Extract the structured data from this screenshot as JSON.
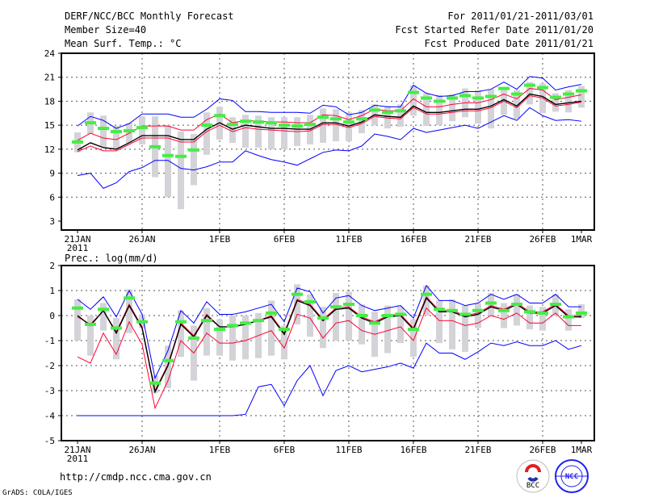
{
  "header": {
    "title": "DERF/NCC/BCC Monthly Forecast",
    "member_size": "Member Size=40",
    "variable1": "Mean Surf. Temp.: °C",
    "period": "For 2011/01/21-2011/03/01",
    "started": "Fcst Started Refer Date 2011/01/20",
    "produced": "Fcst Produced Date 2011/01/21"
  },
  "footer": {
    "url": "http://cmdp.ncc.cma.gov.cn",
    "grads": "GrADS: COLA/IGES",
    "logo_bcc": "BCC",
    "logo_ncc": "NCC"
  },
  "colors": {
    "mean": "#000000",
    "spread": "#ff0033",
    "extreme": "#0000ff",
    "marker": "#44ee44",
    "box": "#d3d3d8"
  },
  "chart_data": [
    {
      "type": "line",
      "title": "Mean Surf. Temp.: °C",
      "ylim": [
        3,
        24
      ],
      "yticks": [
        3,
        6,
        9,
        12,
        15,
        18,
        21,
        24
      ],
      "xtick_labels": [
        "21JAN",
        "26JAN",
        "1FEB",
        "6FEB",
        "11FEB",
        "16FEB",
        "21FEB",
        "26FEB",
        "1MAR"
      ],
      "xtick_days": [
        0,
        5,
        11,
        16,
        21,
        26,
        31,
        36,
        39
      ],
      "year_label": "2011",
      "grid": true,
      "x_days": 40,
      "series": [
        {
          "name": "max",
          "color": "extreme",
          "values": [
            14.9,
            16.1,
            15.6,
            14.6,
            15.2,
            16.4,
            16.4,
            16.4,
            16.0,
            16.0,
            17.0,
            18.3,
            18.1,
            16.7,
            16.7,
            16.6,
            16.6,
            16.6,
            16.5,
            17.5,
            17.3,
            16.3,
            16.6,
            17.5,
            17.3,
            17.3,
            20.0,
            19.0,
            18.6,
            18.7,
            19.2,
            19.2,
            19.5,
            20.4,
            19.5,
            21.1,
            20.9,
            19.4,
            19.8,
            20.1
          ]
        },
        {
          "name": "upper",
          "color": "spread",
          "values": [
            13.1,
            14.0,
            13.4,
            13.2,
            14.0,
            14.9,
            14.9,
            14.9,
            14.4,
            14.4,
            15.7,
            16.4,
            15.3,
            15.6,
            15.5,
            15.4,
            15.4,
            15.3,
            15.3,
            16.3,
            16.2,
            15.7,
            16.2,
            17.0,
            16.8,
            16.8,
            18.3,
            17.3,
            17.3,
            17.6,
            17.8,
            17.8,
            18.2,
            18.9,
            18.3,
            19.6,
            19.4,
            18.2,
            18.5,
            18.8
          ]
        },
        {
          "name": "mean",
          "color": "mean",
          "values": [
            11.9,
            12.8,
            12.2,
            12.0,
            12.8,
            13.7,
            13.7,
            13.7,
            13.2,
            13.2,
            14.5,
            15.3,
            14.5,
            15.0,
            14.8,
            14.6,
            14.6,
            14.5,
            14.5,
            15.3,
            15.3,
            14.9,
            15.4,
            16.3,
            16.1,
            16.0,
            17.4,
            16.6,
            16.6,
            16.8,
            17.0,
            17.0,
            17.4,
            18.2,
            17.4,
            18.9,
            18.6,
            17.6,
            17.8,
            18.0
          ]
        },
        {
          "name": "lower",
          "color": "spread",
          "values": [
            11.7,
            12.4,
            11.8,
            11.8,
            12.6,
            13.4,
            13.4,
            13.4,
            12.9,
            12.9,
            14.2,
            15.0,
            14.2,
            14.7,
            14.5,
            14.4,
            14.3,
            14.2,
            14.3,
            15.1,
            15.1,
            14.7,
            15.2,
            16.1,
            15.9,
            15.8,
            17.2,
            16.4,
            16.4,
            16.6,
            16.8,
            16.8,
            17.2,
            18.0,
            17.2,
            18.7,
            18.4,
            17.4,
            17.6,
            17.9
          ]
        },
        {
          "name": "min",
          "color": "extreme",
          "values": [
            8.7,
            9.0,
            7.1,
            7.8,
            9.2,
            9.7,
            10.6,
            10.6,
            9.6,
            9.4,
            9.8,
            10.4,
            10.4,
            11.8,
            11.2,
            10.7,
            10.4,
            10.0,
            10.8,
            11.6,
            11.9,
            11.8,
            12.4,
            13.9,
            13.6,
            13.2,
            14.6,
            14.1,
            14.4,
            14.7,
            15.0,
            14.6,
            15.4,
            16.2,
            15.6,
            17.2,
            16.2,
            15.6,
            15.7,
            15.5
          ]
        }
      ],
      "markers": [
        12.9,
        15.3,
        14.6,
        14.2,
        14.3,
        14.7,
        12.3,
        11.2,
        11.1,
        11.9,
        15.0,
        16.2,
        15.1,
        15.5,
        15.4,
        15.3,
        15.0,
        14.9,
        15.1,
        16.0,
        15.8,
        15.4,
        15.8,
        16.9,
        16.6,
        16.8,
        19.1,
        18.4,
        18.0,
        18.4,
        18.7,
        18.4,
        18.6,
        19.6,
        18.9,
        20.0,
        19.7,
        18.5,
        18.9,
        19.3
      ],
      "box_lo": [
        11.6,
        13.9,
        12.3,
        12.1,
        12.8,
        12.6,
        8.5,
        6.0,
        4.5,
        7.5,
        11.3,
        13.2,
        12.8,
        12.2,
        12.2,
        12.0,
        12.0,
        12.4,
        12.6,
        12.8,
        13.0,
        13.0,
        14.0,
        15.0,
        14.6,
        14.8,
        16.2,
        14.9,
        15.0,
        15.5,
        16.0,
        15.2,
        14.6,
        16.3,
        15.8,
        17.6,
        16.5,
        16.7,
        16.6,
        17.2
      ],
      "box_hi": [
        14.1,
        16.6,
        16.2,
        14.9,
        15.3,
        16.1,
        16.1,
        15.0,
        14.2,
        13.9,
        16.6,
        17.3,
        16.0,
        16.3,
        16.2,
        16.0,
        16.0,
        16.0,
        16.3,
        17.1,
        17.0,
        16.6,
        16.9,
        17.6,
        17.4,
        17.6,
        20.0,
        19.0,
        18.8,
        18.9,
        19.6,
        19.4,
        19.5,
        19.7,
        19.4,
        20.4,
        20.2,
        19.0,
        19.4,
        19.9
      ]
    },
    {
      "type": "line",
      "title": "Prec.: log(mm/d)",
      "ylim": [
        -5,
        2
      ],
      "yticks": [
        -5,
        -4,
        -3,
        -2,
        -1,
        0,
        1,
        2
      ],
      "xtick_labels": [
        "21JAN",
        "26JAN",
        "1FEB",
        "6FEB",
        "11FEB",
        "16FEB",
        "21FEB",
        "26FEB",
        "1MAR"
      ],
      "xtick_days": [
        0,
        5,
        11,
        16,
        21,
        26,
        31,
        36,
        39
      ],
      "year_label": "2011",
      "grid": true,
      "x_days": 40,
      "series": [
        {
          "name": "max",
          "color": "extreme",
          "values": [
            0.65,
            0.25,
            0.75,
            -0.05,
            1.0,
            0.05,
            -2.5,
            -1.4,
            0.2,
            -0.3,
            0.55,
            0.05,
            0.05,
            0.15,
            0.3,
            0.45,
            -0.25,
            1.1,
            0.95,
            0.1,
            0.7,
            0.8,
            0.4,
            0.2,
            0.3,
            0.4,
            -0.1,
            1.2,
            0.6,
            0.6,
            0.4,
            0.5,
            0.85,
            0.65,
            0.85,
            0.5,
            0.5,
            0.85,
            0.35,
            0.35
          ]
        },
        {
          "name": "upper",
          "color": "spread",
          "values": [
            -0.05,
            -0.35,
            0.2,
            -0.65,
            0.45,
            -0.45,
            -3.0,
            -1.95,
            -0.3,
            -0.8,
            0.05,
            -0.45,
            -0.45,
            -0.35,
            -0.2,
            0.0,
            -0.7,
            0.65,
            0.45,
            -0.15,
            0.3,
            0.35,
            -0.05,
            -0.25,
            0.0,
            0.05,
            -0.5,
            0.75,
            0.2,
            0.2,
            0.0,
            0.1,
            0.4,
            0.25,
            0.5,
            0.15,
            0.15,
            0.45,
            0.0,
            0.0
          ]
        },
        {
          "name": "mean",
          "color": "mean",
          "values": [
            0.0,
            -0.4,
            0.2,
            -0.7,
            0.4,
            -0.5,
            -3.05,
            -2.0,
            -0.35,
            -0.85,
            0.0,
            -0.45,
            -0.45,
            -0.35,
            -0.2,
            -0.05,
            -0.75,
            0.6,
            0.4,
            -0.2,
            0.25,
            0.3,
            -0.1,
            -0.3,
            -0.05,
            0.0,
            -0.55,
            0.7,
            0.15,
            0.15,
            -0.05,
            0.05,
            0.35,
            0.2,
            0.45,
            0.1,
            0.1,
            0.4,
            -0.05,
            -0.05
          ]
        },
        {
          "name": "lower",
          "color": "spread",
          "values": [
            -1.65,
            -1.9,
            -0.7,
            -1.55,
            -0.25,
            -1.15,
            -3.7,
            -2.6,
            -1.0,
            -1.5,
            -0.7,
            -1.1,
            -1.1,
            -1.0,
            -0.8,
            -0.6,
            -1.3,
            0.05,
            -0.1,
            -0.9,
            -0.3,
            -0.2,
            -0.6,
            -0.75,
            -0.6,
            -0.45,
            -1.0,
            0.3,
            -0.2,
            -0.2,
            -0.4,
            -0.3,
            0.0,
            -0.15,
            0.1,
            -0.3,
            -0.3,
            0.1,
            -0.4,
            -0.4
          ]
        },
        {
          "name": "min",
          "color": "extreme",
          "values": [
            -4,
            -4,
            -4,
            -4,
            -4,
            -4,
            -4,
            -4,
            -4,
            -4,
            -4,
            -4,
            -4,
            -3.95,
            -2.85,
            -2.75,
            -3.6,
            -2.6,
            -2.0,
            -3.2,
            -2.2,
            -2.0,
            -2.25,
            -2.15,
            -2.05,
            -1.9,
            -2.1,
            -1.1,
            -1.5,
            -1.5,
            -1.75,
            -1.45,
            -1.1,
            -1.2,
            -1.05,
            -1.2,
            -1.2,
            -1.0,
            -1.35,
            -1.2
          ]
        }
      ],
      "markers": [
        0.3,
        -0.35,
        0.25,
        -0.5,
        0.7,
        -0.25,
        -2.7,
        -1.8,
        -0.25,
        -0.9,
        -0.2,
        -0.55,
        -0.4,
        -0.3,
        -0.2,
        0.1,
        -0.55,
        0.85,
        0.55,
        -0.1,
        0.35,
        0.45,
        0.0,
        -0.3,
        0.0,
        0.05,
        -0.55,
        0.85,
        0.25,
        0.2,
        0.05,
        0.2,
        0.5,
        0.2,
        0.45,
        0.15,
        0.1,
        0.45,
        -0.05,
        0.1
      ],
      "box_lo": [
        -1.0,
        -1.6,
        -0.6,
        -1.75,
        -0.7,
        -0.5,
        -3.1,
        -2.9,
        -1.65,
        -2.6,
        -1.6,
        -1.6,
        -1.8,
        -1.75,
        -1.7,
        -1.6,
        -1.75,
        -0.35,
        -0.85,
        -1.3,
        -1.0,
        -1.0,
        -1.15,
        -1.65,
        -1.5,
        -1.1,
        -1.65,
        0.0,
        -1.1,
        -1.35,
        -1.45,
        -0.5,
        0.0,
        -0.5,
        -0.4,
        -0.55,
        -0.6,
        0.0,
        -0.6,
        -0.1
      ],
      "box_hi": [
        0.65,
        0.0,
        0.5,
        -0.1,
        1.05,
        0.05,
        -2.4,
        -1.2,
        0.2,
        -0.4,
        0.3,
        -0.15,
        0.0,
        0.0,
        0.1,
        0.6,
        -0.4,
        1.25,
        0.85,
        0.35,
        0.9,
        0.95,
        0.45,
        0.15,
        0.4,
        0.35,
        -0.15,
        1.2,
        0.6,
        0.65,
        0.4,
        0.5,
        0.9,
        0.5,
        0.85,
        0.4,
        0.35,
        0.85,
        0.25,
        0.45
      ]
    }
  ]
}
